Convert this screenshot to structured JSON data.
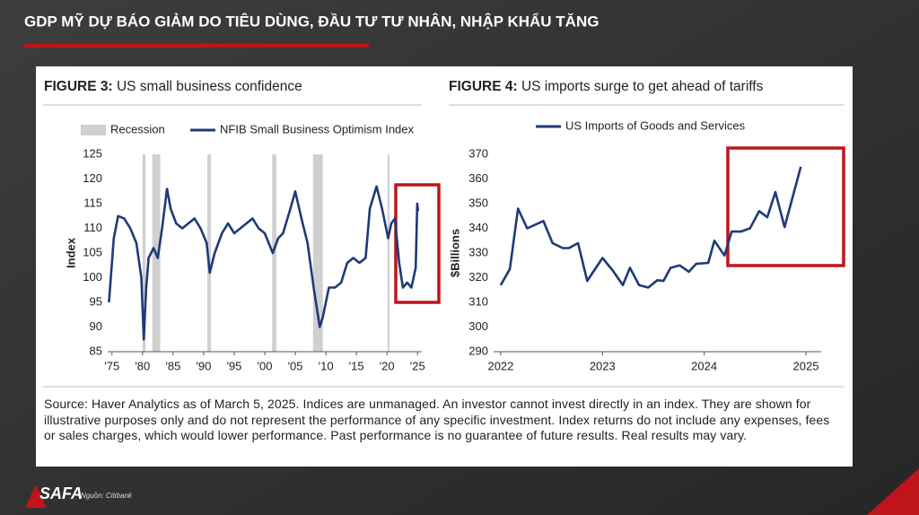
{
  "header": {
    "title": "GDP MỸ DỰ BÁO GIẢM DO TIÊU DÙNG, ĐẦU TƯ TƯ NHÂN, NHẬP KHẨU TĂNG"
  },
  "chart_data": [
    {
      "type": "line",
      "figure_label": "FIGURE 3:",
      "title": "US small business confidence",
      "ylabel": "Index",
      "recessions": {
        "name": "Recession",
        "color": "#d0d0d0",
        "ranges": [
          [
            1980.0,
            1980.5
          ],
          [
            1981.6,
            1982.9
          ],
          [
            1990.6,
            1991.2
          ],
          [
            2001.2,
            2001.9
          ],
          [
            2007.9,
            2009.5
          ],
          [
            2020.1,
            2020.4
          ]
        ]
      },
      "series": [
        {
          "name": "NFIB Small Business Optimism Index",
          "color": "#1f3a78",
          "x": [
            1974.5,
            1975.3,
            1976,
            1977,
            1978,
            1979,
            1979.8,
            1980.2,
            1980.6,
            1981,
            1981.8,
            1982.5,
            1983.2,
            1984,
            1984.6,
            1985.5,
            1986.5,
            1987.5,
            1988.5,
            1989.5,
            1990.5,
            1991,
            1991.8,
            1993,
            1994,
            1995,
            1996,
            1997,
            1998,
            1999,
            2000,
            2001.3,
            2002.2,
            2003,
            2004.2,
            2005,
            2006,
            2007,
            2008,
            2009,
            2009.5,
            2010.5,
            2011.5,
            2012.5,
            2013.5,
            2014.5,
            2015.5,
            2016.5,
            2017.2,
            2018.3,
            2019.2,
            2020.2,
            2020.7,
            2021.3,
            2022,
            2022.6,
            2023.3,
            2024,
            2024.7,
            2024.95,
            2025.1
          ],
          "values": [
            95,
            108,
            112.5,
            112,
            110,
            107,
            100,
            87.5,
            98,
            104,
            106,
            104,
            110,
            118,
            114,
            111,
            110,
            111,
            112,
            110,
            107,
            101,
            105,
            109,
            111,
            109,
            110,
            111,
            112,
            110,
            109,
            105,
            108,
            109,
            114,
            117.5,
            112,
            107,
            98,
            90,
            92,
            98,
            98,
            99,
            103,
            104,
            103,
            104,
            114,
            118.5,
            114,
            108,
            111,
            112,
            103,
            98,
            99,
            98,
            102,
            115,
            113.5
          ]
        }
      ],
      "xlim": [
        1974.3,
        2025.7
      ],
      "ylim": [
        85,
        125
      ],
      "xticks": [
        {
          "value": 1975,
          "label": "'75"
        },
        {
          "value": 1980,
          "label": "'80"
        },
        {
          "value": 1985,
          "label": "'85"
        },
        {
          "value": 1990,
          "label": "'90"
        },
        {
          "value": 1995,
          "label": "'95"
        },
        {
          "value": 2000,
          "label": "'00"
        },
        {
          "value": 2005,
          "label": "'05"
        },
        {
          "value": 2010,
          "label": "'10"
        },
        {
          "value": 2015,
          "label": "'15"
        },
        {
          "value": 2020,
          "label": "'20"
        },
        {
          "value": 2025,
          "label": "'25"
        }
      ],
      "yticks": [
        85,
        90,
        95,
        100,
        105,
        110,
        115,
        120,
        125
      ]
    },
    {
      "type": "line",
      "figure_label": "FIGURE 4:",
      "title": "US imports surge to get ahead of tariffs",
      "ylabel": "$Billions",
      "series": [
        {
          "name": "US Imports of Goods and Services",
          "color": "#1f3a78",
          "x": [
            2022.0,
            2022.09,
            2022.17,
            2022.26,
            2022.42,
            2022.51,
            2022.61,
            2022.67,
            2022.76,
            2022.85,
            2023.0,
            2023.1,
            2023.2,
            2023.27,
            2023.36,
            2023.45,
            2023.54,
            2023.6,
            2023.67,
            2023.76,
            2023.85,
            2023.92,
            2024.04,
            2024.1,
            2024.2,
            2024.27,
            2024.36,
            2024.45,
            2024.54,
            2024.62,
            2024.7,
            2024.79,
            2024.95
          ],
          "values": [
            317,
            323.5,
            348,
            340,
            343,
            334,
            332,
            332,
            334,
            318.7,
            328,
            323,
            317,
            324,
            317,
            316,
            319,
            318.7,
            324,
            325,
            322.4,
            325.6,
            326,
            335,
            329,
            338.7,
            338.7,
            340,
            347,
            344.5,
            354.7,
            340.5,
            365
          ]
        }
      ],
      "xlim": [
        2021.93,
        2025.15
      ],
      "ylim": [
        290,
        370
      ],
      "xticks": [
        2022,
        2023,
        2024,
        2025
      ],
      "yticks": [
        290,
        300,
        310,
        320,
        330,
        340,
        350,
        360,
        370
      ]
    }
  ],
  "source": "Source: Haver Analytics as of March 5, 2025. Indices are unmanaged. An investor cannot invest directly in an index. They are shown for illustrative purposes only and do not represent the performance of any specific investment. Index returns do not include any expenses, fees or sales charges, which would lower performance. Past performance is no guarantee of future results. Real results may vary.",
  "footer": {
    "logo": "SAFA",
    "credit": "Nguồn: Citibank"
  }
}
